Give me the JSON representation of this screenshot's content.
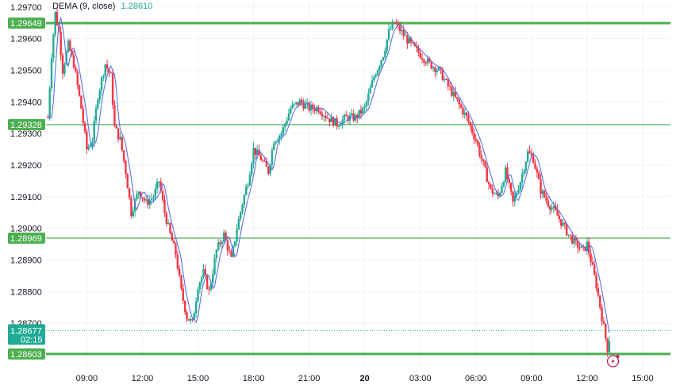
{
  "indicator": {
    "label": "DEMA (9, close)",
    "value": "1.28610"
  },
  "colors": {
    "up": "#22ab94",
    "down": "#f23645",
    "dema": "#5b6fe6",
    "level": "#4caf50",
    "grid": "#f0f3fa",
    "text": "#131722",
    "current": "#22ab94",
    "bolt": "#c2185b"
  },
  "chart_data": {
    "type": "candlestick",
    "y_ticks": [
      "1.29700",
      "1.29600",
      "1.29500",
      "1.29400",
      "1.29300",
      "1.29200",
      "1.29100",
      "1.29000",
      "1.28900",
      "1.28800",
      "1.28700"
    ],
    "x_ticks": [
      {
        "label": "09:00",
        "hour": 9
      },
      {
        "label": "12:00",
        "hour": 12
      },
      {
        "label": "15:00",
        "hour": 15
      },
      {
        "label": "18:00",
        "hour": 18
      },
      {
        "label": "21:00",
        "hour": 21
      },
      {
        "label": "20",
        "hour": 24,
        "bold": true
      },
      {
        "label": "03:00",
        "hour": 27
      },
      {
        "label": "06:00",
        "hour": 30
      },
      {
        "label": "09:00",
        "hour": 33
      },
      {
        "label": "12:00",
        "hour": 36
      },
      {
        "label": "15:00",
        "hour": 39
      }
    ],
    "x_range_hours": [
      6.8,
      40.5
    ],
    "y_range": [
      1.2856,
      1.29722
    ],
    "levels": [
      {
        "label": "1.29649",
        "value": 1.29649,
        "thick": true
      },
      {
        "label": "1.29328",
        "value": 1.29328,
        "thick": false
      },
      {
        "label": "1.28969",
        "value": 1.28969,
        "thick": false
      },
      {
        "label": "1.28603",
        "value": 1.28603,
        "thick": true
      }
    ],
    "current_price": {
      "label": "1.28677",
      "value": 1.28677,
      "countdown": "02:15"
    },
    "price_path": [
      [
        6.9,
        1.2935
      ],
      [
        7.1,
        1.2955
      ],
      [
        7.3,
        1.2968
      ],
      [
        7.5,
        1.2962
      ],
      [
        7.7,
        1.295
      ],
      [
        8.0,
        1.2958
      ],
      [
        8.3,
        1.2952
      ],
      [
        8.7,
        1.2938
      ],
      [
        9.0,
        1.2925
      ],
      [
        9.3,
        1.2928
      ],
      [
        9.6,
        1.2942
      ],
      [
        10.0,
        1.2952
      ],
      [
        10.3,
        1.2948
      ],
      [
        10.5,
        1.2932
      ],
      [
        10.8,
        1.2928
      ],
      [
        11.1,
        1.2918
      ],
      [
        11.4,
        1.2905
      ],
      [
        11.8,
        1.2912
      ],
      [
        12.2,
        1.2908
      ],
      [
        12.6,
        1.291
      ],
      [
        12.9,
        1.2915
      ],
      [
        13.2,
        1.2905
      ],
      [
        13.5,
        1.2898
      ],
      [
        13.8,
        1.2892
      ],
      [
        14.1,
        1.288
      ],
      [
        14.4,
        1.2872
      ],
      [
        14.7,
        1.287
      ],
      [
        15.0,
        1.2882
      ],
      [
        15.3,
        1.2886
      ],
      [
        15.6,
        1.288
      ],
      [
        16.0,
        1.2893
      ],
      [
        16.4,
        1.2898
      ],
      [
        16.8,
        1.289
      ],
      [
        17.1,
        1.29
      ],
      [
        17.4,
        1.2908
      ],
      [
        17.7,
        1.2915
      ],
      [
        18.0,
        1.2925
      ],
      [
        18.4,
        1.2922
      ],
      [
        18.8,
        1.2918
      ],
      [
        19.1,
        1.2928
      ],
      [
        19.5,
        1.293
      ],
      [
        20.0,
        1.2938
      ],
      [
        20.5,
        1.294
      ],
      [
        21.0,
        1.2938
      ],
      [
        21.5,
        1.2938
      ],
      [
        22.0,
        1.2935
      ],
      [
        22.5,
        1.2933
      ],
      [
        23.0,
        1.2935
      ],
      [
        23.5,
        1.2935
      ],
      [
        24.0,
        1.2938
      ],
      [
        24.5,
        1.2948
      ],
      [
        25.0,
        1.2955
      ],
      [
        25.3,
        1.2962
      ],
      [
        25.6,
        1.2965
      ],
      [
        26.0,
        1.2962
      ],
      [
        26.5,
        1.2958
      ],
      [
        27.0,
        1.2955
      ],
      [
        27.5,
        1.2952
      ],
      [
        28.0,
        1.295
      ],
      [
        28.5,
        1.2945
      ],
      [
        29.0,
        1.294
      ],
      [
        29.5,
        1.2935
      ],
      [
        30.0,
        1.2928
      ],
      [
        30.4,
        1.292
      ],
      [
        30.8,
        1.2912
      ],
      [
        31.2,
        1.291
      ],
      [
        31.6,
        1.2918
      ],
      [
        32.0,
        1.2908
      ],
      [
        32.4,
        1.2915
      ],
      [
        32.8,
        1.2924
      ],
      [
        33.1,
        1.2922
      ],
      [
        33.5,
        1.2912
      ],
      [
        33.9,
        1.2908
      ],
      [
        34.3,
        1.2905
      ],
      [
        34.6,
        1.2902
      ],
      [
        35.0,
        1.2898
      ],
      [
        35.4,
        1.2895
      ],
      [
        35.8,
        1.2893
      ],
      [
        36.0,
        1.2895
      ],
      [
        36.2,
        1.289
      ],
      [
        36.5,
        1.2882
      ],
      [
        36.8,
        1.2872
      ],
      [
        37.1,
        1.2862
      ],
      [
        37.3,
        1.2868
      ]
    ]
  }
}
